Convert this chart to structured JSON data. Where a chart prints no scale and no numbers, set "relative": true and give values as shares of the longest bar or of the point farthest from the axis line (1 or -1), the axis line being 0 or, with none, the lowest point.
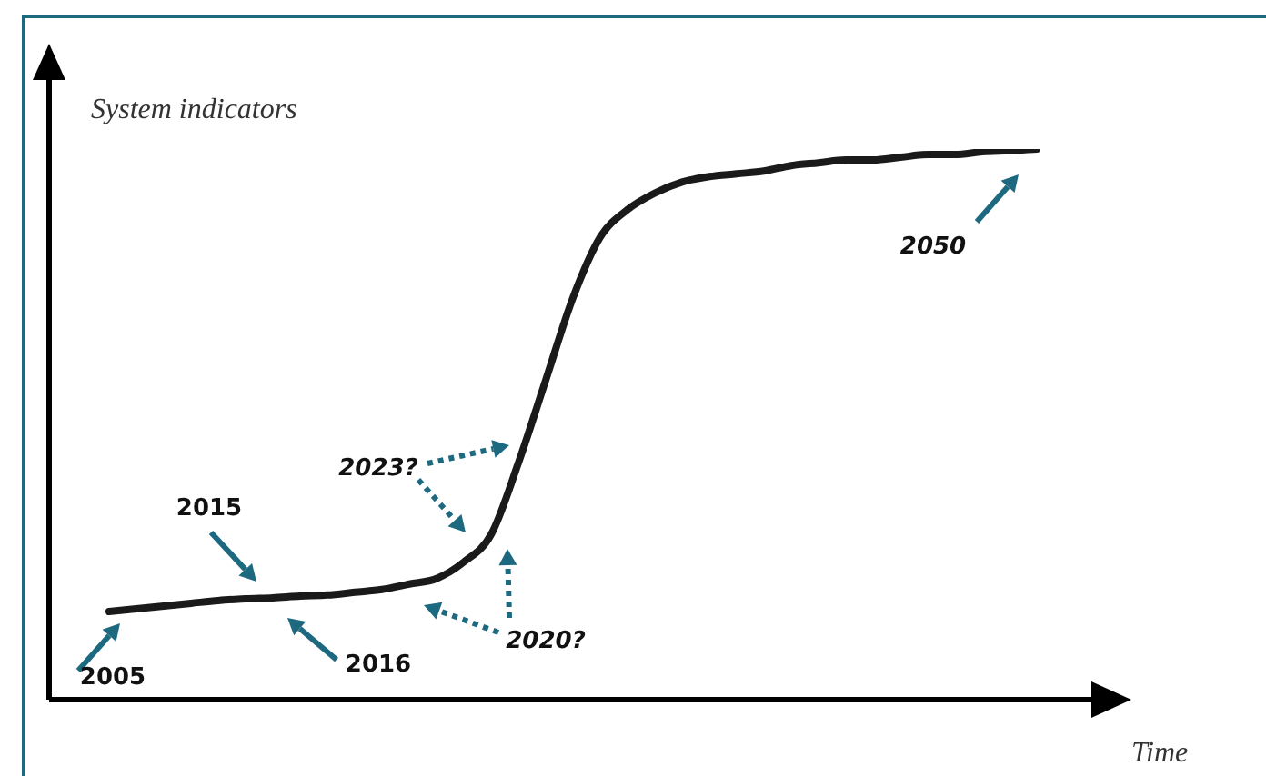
{
  "chart_data": {
    "type": "line",
    "relative": true,
    "xlabel": "Time",
    "ylabel": "System indicators",
    "categories": [
      null,
      null,
      null,
      null,
      null,
      null,
      null,
      null,
      null,
      null,
      null,
      null,
      null,
      null,
      null,
      null,
      null,
      null,
      null,
      null,
      null,
      null,
      null,
      null,
      null,
      null,
      null,
      null,
      null,
      null,
      null,
      null,
      null,
      null,
      null
    ],
    "series": [
      {
        "color": "#1a1a1a",
        "values": [
          0.16,
          0.165,
          0.17,
          0.175,
          0.18,
          0.183,
          0.185,
          0.188,
          0.19,
          0.195,
          0.2,
          0.21,
          0.22,
          0.25,
          0.3,
          0.43,
          0.58,
          0.73,
          0.84,
          0.89,
          0.92,
          0.94,
          0.95,
          0.955,
          0.96,
          0.97,
          0.975,
          0.98,
          0.98,
          0.985,
          0.99,
          0.99,
          0.995,
          0.997,
          1
        ]
      }
    ],
    "annotations": [
      "2005",
      "2015",
      "2016",
      "2023?",
      "2020?",
      "2050"
    ],
    "legend": false
  }
}
